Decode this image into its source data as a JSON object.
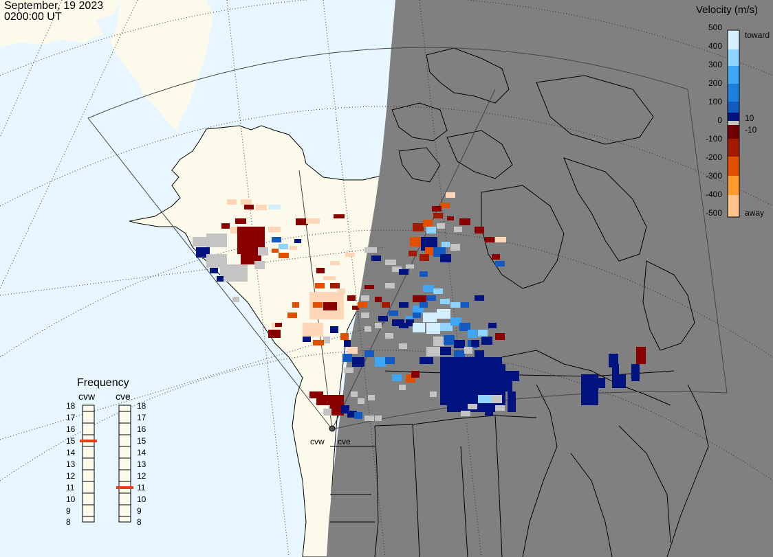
{
  "title": {
    "date": "September, 19 2023",
    "time": "0200:00 UT"
  },
  "colorbar": {
    "title": "Velocity (m/s)",
    "ticks": [
      "500",
      "400",
      "300",
      "200",
      "100",
      "0",
      "-100",
      "-200",
      "-300",
      "-400",
      "-500"
    ],
    "near_zero_pos": "10",
    "near_zero_neg": "-10",
    "top_label": "toward",
    "bottom_label": "away",
    "colors": {
      "toward": [
        "#d4f0ff",
        "#8fd3ff",
        "#3ea6f5",
        "#1c7fe0",
        "#1259c0",
        "#0a3a9e",
        "#00137e",
        "#000a66"
      ],
      "away": [
        "#6e0000",
        "#8a0000",
        "#a31a00",
        "#c43500",
        "#e05000",
        "#f07000",
        "#ff9a2e",
        "#ffc48a",
        "#ffe0c0"
      ],
      "ground_scatter": "#c4c4c4"
    }
  },
  "frequency": {
    "title": "Frequency",
    "radars": [
      "cvw",
      "cve"
    ],
    "scale": [
      "18",
      "17",
      "16",
      "15",
      "14",
      "13",
      "12",
      "11",
      "10",
      "9",
      "8"
    ],
    "values": {
      "cvw": 15,
      "cve": 11
    },
    "marker_color": "#e0401a"
  },
  "radar_labels": [
    "cvw",
    "cve"
  ],
  "map_colors": {
    "ocean": "#e8f6ff",
    "land": "#fcfaeb",
    "night": "#808080",
    "coastline": "#000000",
    "grid": "#333333",
    "fov": "#444444"
  }
}
